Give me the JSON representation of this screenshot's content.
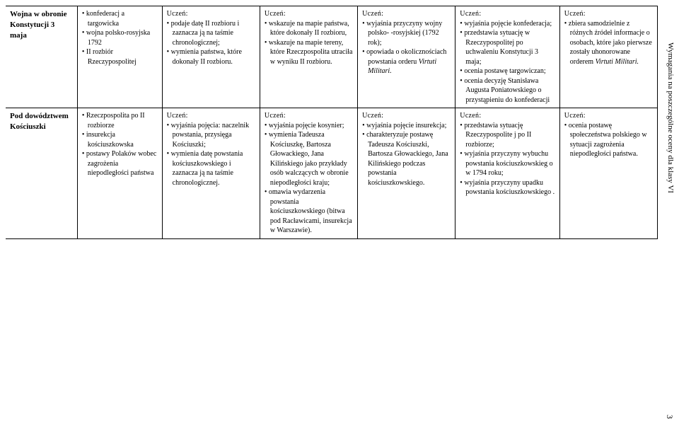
{
  "sideText": "Wymagania na poszczególne oceny dla klasy VI",
  "pageNumber": "3",
  "rows": [
    {
      "title": "Wojna w obronie Konstytucji 3 maja",
      "cols": [
        {
          "header": "",
          "items": [
            "konfederacj a targowicka",
            "wojna polsko-rosyjska 1792",
            "II rozbiór Rzeczypospolitej"
          ]
        },
        {
          "header": "Uczeń:",
          "items": [
            "podaje datę II rozbioru i zaznacza ją na taśmie chronologicznej;",
            "wymienia państwa, które dokonały II rozbioru."
          ]
        },
        {
          "header": "Uczeń:",
          "items": [
            "wskazuje na mapie państwa, które dokonały II rozbioru,",
            "wskazuje  na mapie tereny, które Rzeczpospolita utraciła w wyniku II rozbioru."
          ]
        },
        {
          "header": "Uczeń:",
          "items": [
            "wyjaśnia przyczyny wojny polsko- -rosyjskiej (1792 rok);",
            "opowiada o okolicznościach powstania orderu <span class='ital'>Virtuti Militari.</span>"
          ]
        },
        {
          "header": "Uczeń:",
          "items": [
            "wyjaśnia pojęcie konfederacja;",
            "przedstawia sytuację w Rzeczypospolitej po uchwaleniu Konstytucji 3 maja;",
            "ocenia postawę targowiczan;",
            "ocenia decyzję Stanisława Augusta Poniatowskiego o przystąpieniu do konfederacji"
          ]
        },
        {
          "header": "Uczeń:",
          "items": [
            "zbiera samodzielnie z różnych źródeł informacje o osobach, które jako pierwsze zostały uhonorowane orderem <span class='ital'>Virtuti Militari.</span>"
          ]
        }
      ]
    },
    {
      "title": "Pod dowództwem Kościuszki",
      "cols": [
        {
          "header": "",
          "items": [
            " Rzeczpospolita po II rozbiorze",
            "insurekcja kościuszkowska",
            "postawy Polaków wobec zagrożenia niepodległości państwa"
          ]
        },
        {
          "header": "Uczeń:",
          "items": [
            "wyjaśnia pojęcia: naczelnik powstania, przysięga Kościuszki;",
            "wymienia datę powstania kościuszkowskiego i zaznacza ją na taśmie chronologicznej."
          ]
        },
        {
          "header": "Uczeń:",
          "items": [
            "wyjaśnia pojęcie kosynier;",
            "wymienia Tadeusza Kościuszkę, Bartosza Głowackiego, Jana Kilińskiego jako przykłady osób walczących w obronie niepodległości kraju;",
            "omawia wydarzenia powstania kościuszkowskiego (bitwa pod Racławicami, insurekcja w Warszawie)."
          ]
        },
        {
          "header": "Uczeń:",
          "items": [
            "wyjaśnia pojęcie insurekcja;",
            " charakteryzuje postawę Tadeusza Kościuszki, Bartosza Głowackiego, Jana Kilińskiego podczas powstania kościuszkowskiego."
          ]
        },
        {
          "header": "Uczeń:",
          "items": [
            "przedstawia sytuację Rzeczypospolite j po II rozbiorze;",
            "wyjaśnia przyczyny wybuchu powstania kościuszkowskieg o w 1794 roku;",
            "wyjaśnia przyczyny upadku powstania kościuszkowskiego ."
          ]
        },
        {
          "header": "Uczeń:",
          "items": [
            "ocenia postawę społeczeństwa polskiego w sytuacji zagrożenia niepodległości państwa."
          ]
        }
      ]
    }
  ]
}
